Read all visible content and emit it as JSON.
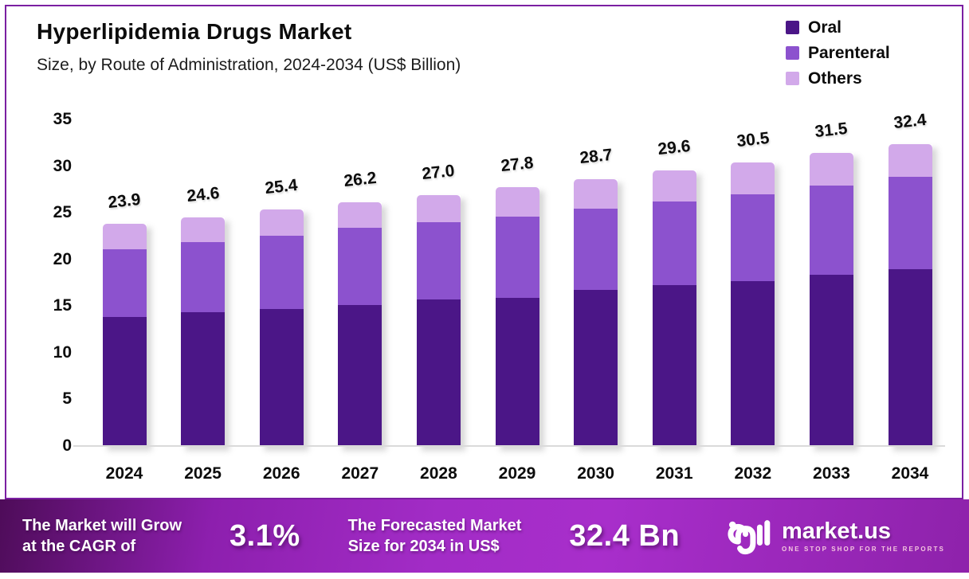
{
  "header": {
    "title": "Hyperlipidemia Drugs Market",
    "subtitle": "Size, by Route of Administration, 2024-2034 (US$ Billion)"
  },
  "chart_data": {
    "type": "bar",
    "stacked": true,
    "title": "Hyperlipidemia Drugs Market Size, by Route of Administration, 2024-2034 (US$ Billion)",
    "unit": "US$ Billion",
    "categories": [
      "2024",
      "2025",
      "2026",
      "2027",
      "2028",
      "2029",
      "2030",
      "2031",
      "2032",
      "2033",
      "2034"
    ],
    "series": [
      {
        "name": "Oral",
        "color": "#4b1687",
        "values": [
          13.9,
          14.4,
          14.8,
          15.2,
          15.8,
          16.0,
          16.8,
          17.3,
          17.8,
          18.4,
          19.0
        ]
      },
      {
        "name": "Parenteral",
        "color": "#8c52ce",
        "values": [
          7.3,
          7.5,
          7.8,
          8.3,
          8.3,
          8.7,
          8.7,
          9.0,
          9.3,
          9.6,
          9.9
        ]
      },
      {
        "name": "Others",
        "color": "#d2a9ea",
        "values": [
          2.7,
          2.7,
          2.8,
          2.7,
          2.9,
          3.1,
          3.2,
          3.3,
          3.4,
          3.5,
          3.5
        ]
      }
    ],
    "totals": [
      23.9,
      24.6,
      25.4,
      26.2,
      27.0,
      27.8,
      28.7,
      29.6,
      30.5,
      31.5,
      32.4
    ],
    "totals_display": [
      "23.9",
      "24.6",
      "25.4",
      "26.2",
      "27.0",
      "27.8",
      "28.7",
      "29.6",
      "30.5",
      "31.5",
      "32.4"
    ],
    "y_ticks": [
      0,
      5,
      10,
      15,
      20,
      25,
      30,
      35
    ],
    "ylim": [
      0,
      35
    ],
    "xlabel": "",
    "ylabel": "",
    "grid": false,
    "legend_position": "top-right"
  },
  "footer": {
    "cagr_line1": "The Market will Grow",
    "cagr_line2": "at the CAGR of",
    "cagr_value": "3.1%",
    "forecast_line1": "The Forecasted Market",
    "forecast_line2": "Size for 2034 in US$",
    "forecast_value": "32.4 Bn"
  },
  "brand": {
    "name": "market.us",
    "tagline": "ONE STOP SHOP FOR THE REPORTS"
  },
  "colors": {
    "card_border": "#7b1fa2",
    "axis_line": "#dadada",
    "oral": "#4b1687",
    "parenteral": "#8c52ce",
    "others": "#d2a9ea",
    "footer_gradient_start": "#4e0c59",
    "footer_gradient_mid": "#a82ecb",
    "footer_gradient_end": "#8e22ab"
  }
}
